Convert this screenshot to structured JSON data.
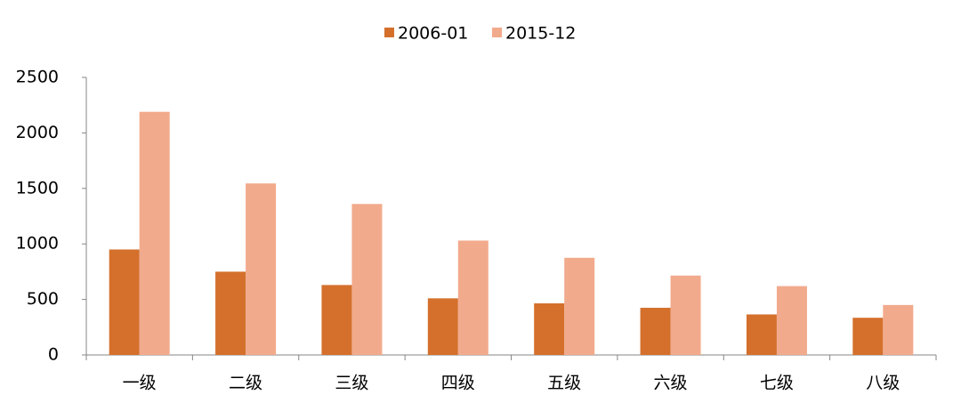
{
  "chart_data": {
    "type": "bar",
    "categories": [
      "一级",
      "二级",
      "三级",
      "四级",
      "五级",
      "六级",
      "七级",
      "八级"
    ],
    "series": [
      {
        "name": "2006-01",
        "color": "#d4702c",
        "values": [
          950,
          750,
          630,
          510,
          465,
          425,
          365,
          335
        ]
      },
      {
        "name": "2015-12",
        "color": "#f2aa8c",
        "values": [
          2190,
          1545,
          1360,
          1030,
          875,
          715,
          620,
          450
        ]
      }
    ],
    "ylim": [
      0,
      2500
    ],
    "yticks": [
      0,
      500,
      1000,
      1500,
      2000,
      2500
    ],
    "grid": false,
    "legend": "top"
  }
}
